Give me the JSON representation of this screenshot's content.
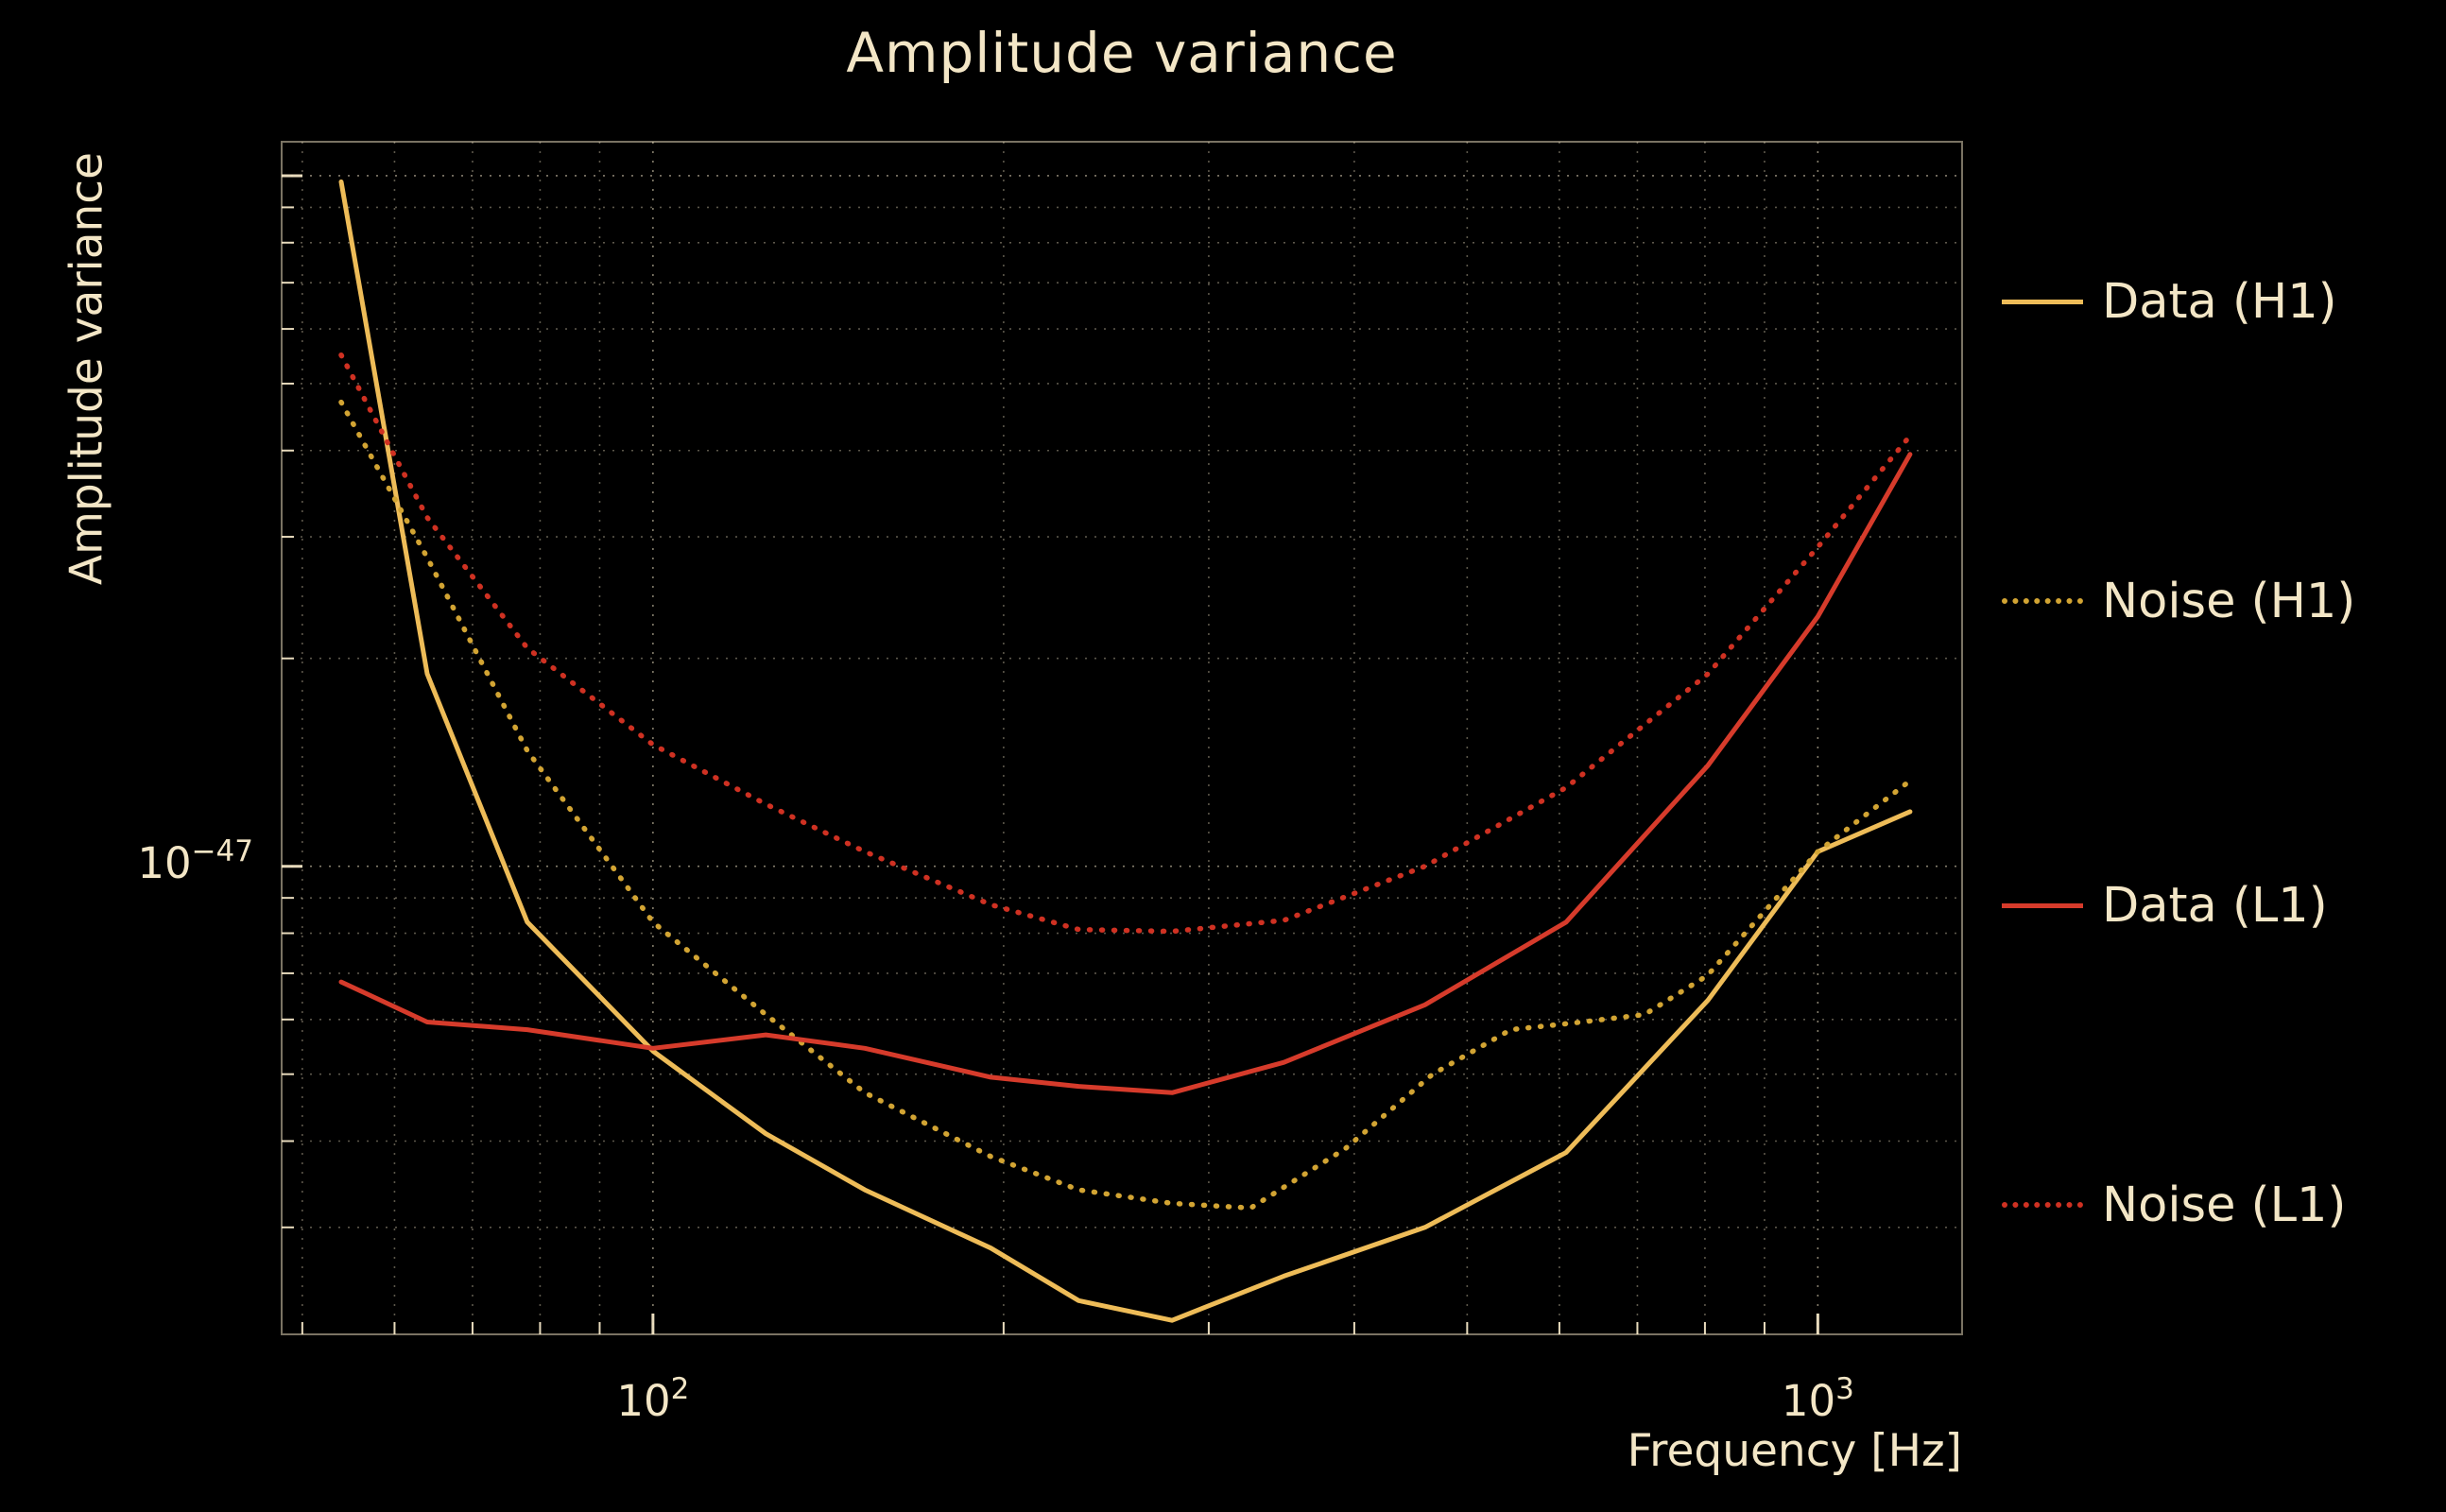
{
  "colors": {
    "background": "#000000",
    "text": "#f3e6c6",
    "grid": "#f3e6c6",
    "data_h1": "#eebc58",
    "noise_h1": "#d2a433",
    "data_l1": "#d63b2b",
    "noise_l1": "#cf3122"
  },
  "chart_data": {
    "type": "line",
    "title": "Amplitude variance",
    "xlabel": "Frequency [Hz]",
    "ylabel": "Amplitude variance",
    "x_scale": "log",
    "y_scale": "log",
    "xlim": [
      48,
      1330
    ],
    "ylim": [
      2.1e-48,
      1.12e-46
    ],
    "grid": true,
    "legend_position": "right-outside",
    "x_ticks": [
      {
        "base": "10",
        "exp": "2",
        "value": 100
      },
      {
        "base": "10",
        "exp": "3",
        "value": 1000
      }
    ],
    "y_ticks": [
      {
        "base": "10",
        "exp": "−47",
        "value": 1e-47
      }
    ],
    "legend": [
      {
        "label": "Data (H1)",
        "color": "#eebc58",
        "style": "solid"
      },
      {
        "label": "Noise (H1)",
        "color": "#d2a433",
        "style": "dotted"
      },
      {
        "label": "Data (L1)",
        "color": "#d63b2b",
        "style": "solid"
      },
      {
        "label": "Noise (L1)",
        "color": "#cf3122",
        "style": "dotted"
      }
    ],
    "series": [
      {
        "name": "Data (H1)",
        "style": "solid",
        "color": "#eebc58",
        "x": [
          54,
          64,
          78,
          100,
          125,
          152,
          195,
          232,
          279,
          348,
          460,
          608,
          805,
          1000,
          1200
        ],
        "y": [
          9.8e-47,
          1.9e-47,
          8.3e-48,
          5.4e-48,
          4.1e-48,
          3.4e-48,
          2.8e-48,
          2.35e-48,
          2.2e-48,
          2.55e-48,
          3e-48,
          3.85e-48,
          6.4e-48,
          1.05e-47,
          1.2e-47
        ]
      },
      {
        "name": "Noise (H1)",
        "style": "dotted",
        "color": "#d2a433",
        "x": [
          54,
          64,
          78,
          100,
          125,
          152,
          195,
          232,
          279,
          326,
          393,
          467,
          545,
          627,
          710,
          804,
          1000,
          1200
        ],
        "y": [
          4.7e-47,
          2.8e-47,
          1.47e-47,
          8.3e-48,
          6.1e-48,
          4.7e-48,
          3.8e-48,
          3.4e-48,
          3.25e-48,
          3.2e-48,
          3.9e-48,
          5e-48,
          5.8e-48,
          5.95e-48,
          6.1e-48,
          6.95e-48,
          1.05e-47,
          1.33e-47
        ]
      },
      {
        "name": "Data (L1)",
        "style": "solid",
        "color": "#d63b2b",
        "x": [
          54,
          64,
          78,
          100,
          125,
          152,
          195,
          232,
          279,
          348,
          460,
          608,
          805,
          1000,
          1200
        ],
        "y": [
          6.8e-48,
          5.95e-48,
          5.8e-48,
          5.45e-48,
          5.7e-48,
          5.45e-48,
          4.95e-48,
          4.8e-48,
          4.7e-48,
          5.2e-48,
          6.3e-48,
          8.3e-48,
          1.4e-47,
          2.3e-47,
          3.95e-47
        ]
      },
      {
        "name": "Noise (L1)",
        "style": "dotted",
        "color": "#cf3122",
        "x": [
          54,
          64,
          78,
          100,
          125,
          152,
          195,
          232,
          279,
          348,
          460,
          608,
          805,
          1000,
          1200
        ],
        "y": [
          5.5e-47,
          3.2e-47,
          2.07e-47,
          1.5e-47,
          1.23e-47,
          1.05e-47,
          8.8e-48,
          8.1e-48,
          8.05e-48,
          8.35e-48,
          1e-47,
          1.3e-47,
          1.9e-47,
          2.9e-47,
          4.2e-47
        ]
      }
    ]
  }
}
